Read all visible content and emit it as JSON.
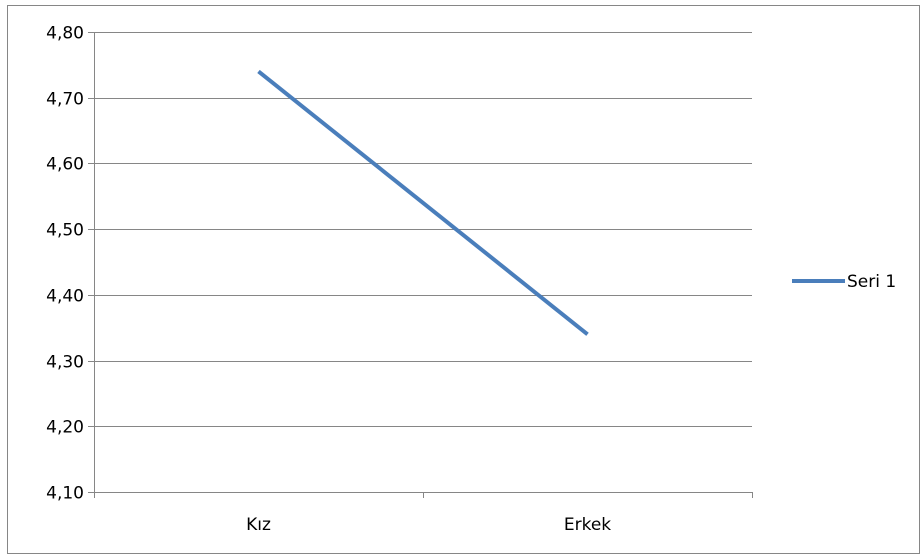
{
  "chart_data": {
    "type": "line",
    "categories": [
      "Kız",
      "Erkek"
    ],
    "series": [
      {
        "name": "Seri 1",
        "values": [
          4.74,
          4.34
        ],
        "color": "#4a7ebb"
      }
    ],
    "ylim": [
      4.1,
      4.8
    ],
    "yticks": [
      4.1,
      4.2,
      4.3,
      4.4,
      4.5,
      4.6,
      4.7,
      4.8
    ],
    "ytick_labels": [
      "4,10",
      "4,20",
      "4,30",
      "4,40",
      "4,50",
      "4,60",
      "4,70",
      "4,80"
    ],
    "grid": true,
    "legend": "right",
    "gridline_color": "#868686",
    "axis_color": "#868686"
  }
}
